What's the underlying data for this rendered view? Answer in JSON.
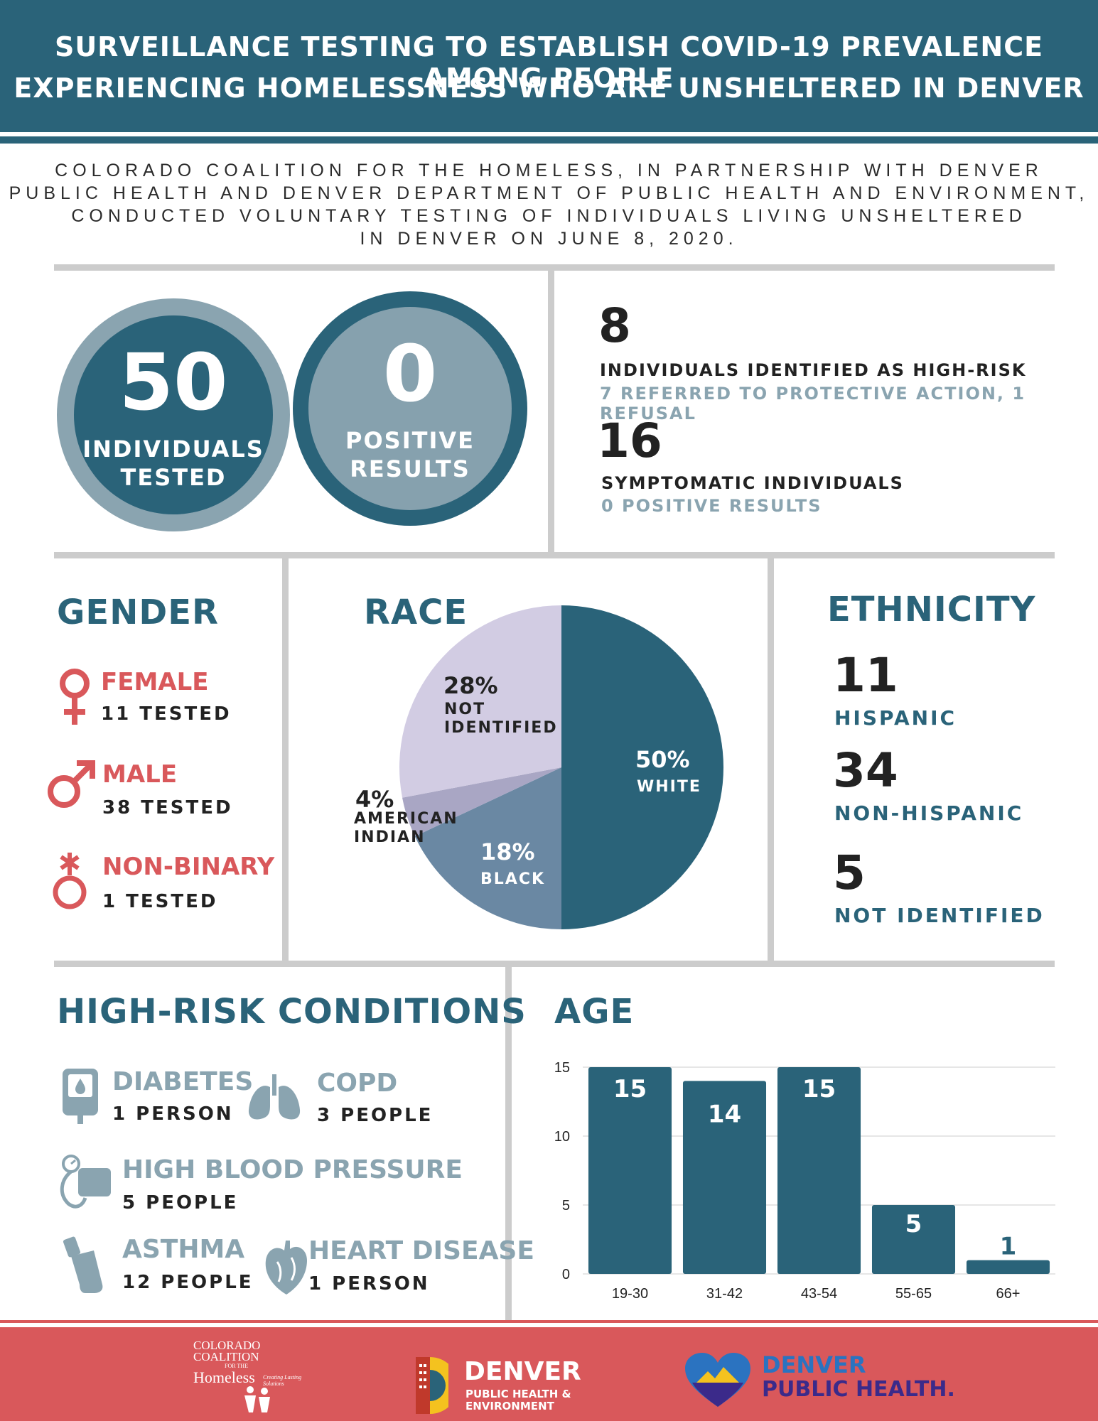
{
  "header": {
    "line1": "SURVEILLANCE TESTING TO ESTABLISH COVID-19 PREVALENCE AMONG PEOPLE",
    "line2": "EXPERIENCING HOMELESSNESS WHO ARE UNSHELTERED IN DENVER"
  },
  "intro": {
    "lines": [
      "COLORADO COALITION FOR THE HOMELESS, IN PARTNERSHIP WITH DENVER",
      "PUBLIC HEALTH AND DENVER DEPARTMENT OF PUBLIC HEALTH AND ENVIRONMENT,",
      "CONDUCTED VOLUNTARY TESTING OF INDIVIDUALS LIVING UNSHELTERED",
      "IN DENVER ON JUNE 8, 2020."
    ]
  },
  "summary": {
    "tested_num": "50",
    "tested_label": [
      "INDIVIDUALS",
      "TESTED"
    ],
    "positive_num": "0",
    "positive_label": [
      "POSITIVE",
      "RESULTS"
    ],
    "high_risk_num": "8",
    "high_risk_title": "INDIVIDUALS IDENTIFIED AS HIGH-RISK",
    "high_risk_sub": "7 REFERRED TO PROTECTIVE ACTION,  1 REFUSAL",
    "symptomatic_num": "16",
    "symptomatic_title": "SYMPTOMATIC INDIVIDUALS",
    "symptomatic_sub": "0 POSITIVE RESULTS"
  },
  "gender": {
    "title": "GENDER",
    "items": [
      {
        "label": "FEMALE",
        "count": "11 TESTED",
        "icon": "female-icon"
      },
      {
        "label": "MALE",
        "count": "38 TESTED",
        "icon": "male-icon"
      },
      {
        "label": "NON-BINARY",
        "count": "1 TESTED",
        "icon": "non-binary-icon"
      }
    ]
  },
  "race": {
    "title": "RACE"
  },
  "ethnicity": {
    "title": "ETHNICITY",
    "items": [
      {
        "num": "11",
        "label": "HISPANIC"
      },
      {
        "num": "34",
        "label": "NON-HISPANIC"
      },
      {
        "num": "5",
        "label": "NOT IDENTIFIED"
      }
    ]
  },
  "conditions": {
    "title": "HIGH-RISK CONDITIONS",
    "items": [
      {
        "name": "DIABETES",
        "count": "1 PERSON",
        "icon": "glucose-meter-icon"
      },
      {
        "name": "COPD",
        "count": "3 PEOPLE",
        "icon": "lungs-icon"
      },
      {
        "name": "HIGH BLOOD PRESSURE",
        "count": "5 PEOPLE",
        "icon": "blood-pressure-icon"
      },
      {
        "name": "ASTHMA",
        "count": "12 PEOPLE",
        "icon": "inhaler-icon"
      },
      {
        "name": "HEART DISEASE",
        "count": "1 PERSON",
        "icon": "heart-icon"
      }
    ]
  },
  "age": {
    "title": "AGE"
  },
  "chart_data": [
    {
      "type": "pie",
      "title": "RACE",
      "slices": [
        {
          "label": "WHITE",
          "pct_label": "50%",
          "value": 50
        },
        {
          "label": "BLACK",
          "pct_label": "18%",
          "value": 18
        },
        {
          "label": "AMERICAN INDIAN",
          "pct_label": "4%",
          "value": 4
        },
        {
          "label": "NOT IDENTIFIED",
          "pct_label": "28%",
          "value": 28
        }
      ]
    },
    {
      "type": "bar",
      "title": "AGE",
      "categories": [
        "19-30",
        "31-42",
        "43-54",
        "55-65",
        "66+"
      ],
      "values": [
        15,
        14,
        15,
        5,
        1
      ],
      "ylim": [
        0,
        15
      ],
      "yticks": [
        0,
        5,
        10,
        15
      ],
      "grid": true
    }
  ],
  "colors": {
    "primary": "#2a6379",
    "accent": "#d9585b",
    "muted": "#8aa4b0",
    "pie_white": "#2a6379",
    "pie_black": "#6a88a3",
    "pie_american_indian": "#a9a6c4",
    "pie_not_identified": "#d2cce3"
  },
  "footer": {
    "logo1": [
      "COLORADO",
      "COALITION",
      "FOR THE",
      "Homeless"
    ],
    "logo1_tagline": "Creating Lasting Solutions",
    "logo2_title": "DENVER",
    "logo2_sub": [
      "PUBLIC HEALTH &",
      "ENVIRONMENT"
    ],
    "logo3_title": "DENVER",
    "logo3_sub": "PUBLIC HEALTH."
  }
}
